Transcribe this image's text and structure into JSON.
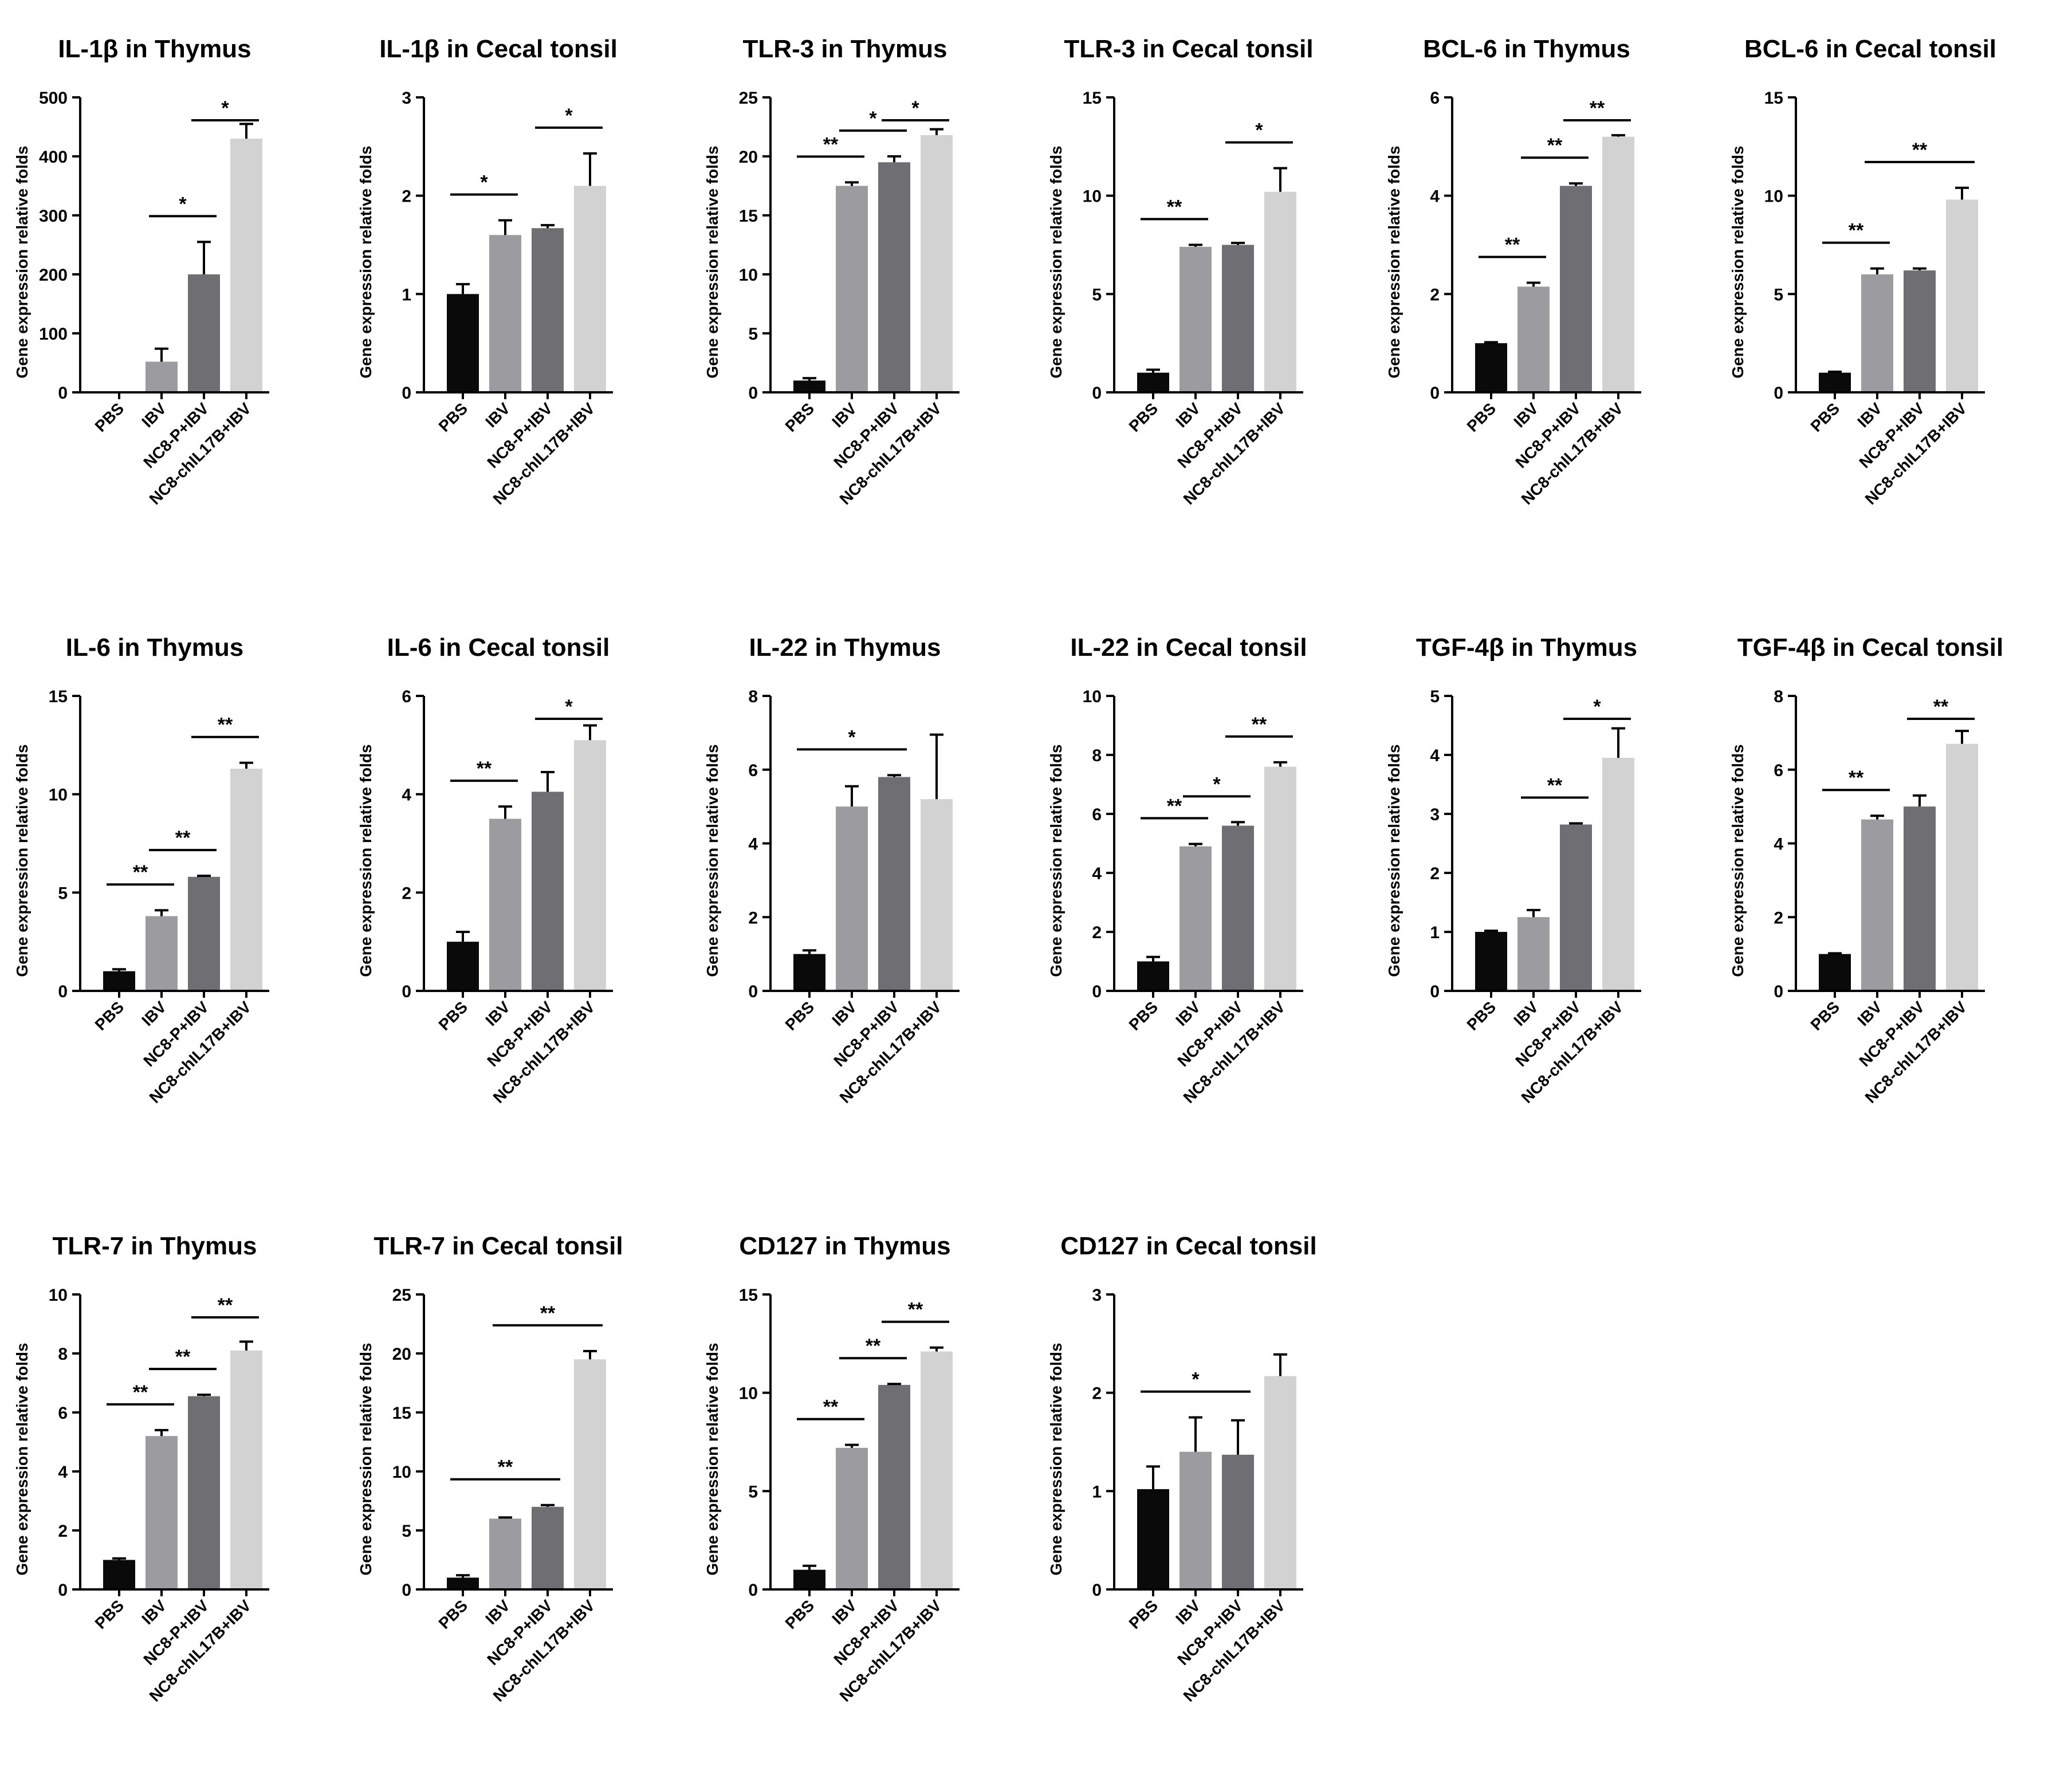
{
  "categories": [
    "PBS",
    "IBV",
    "NC8-P+IBV",
    "NC8-chIL17B+IBV"
  ],
  "ylabel": "Gene expression relative folds",
  "colors": {
    "bars": [
      "#0a0a0a",
      "#9b9ba0",
      "#6f6f73",
      "#d2d2d2"
    ],
    "axis": "#000000"
  },
  "chart_data": [
    {
      "type": "bar",
      "title": "IL-1β in Thymus",
      "ylim": [
        0,
        500
      ],
      "yticks": [
        "0",
        "100",
        "200",
        "300",
        "400",
        "500"
      ],
      "tickvals": [
        0,
        100,
        200,
        300,
        400,
        500
      ],
      "values": [
        1,
        52,
        200,
        430
      ],
      "errors": [
        0,
        22,
        55,
        25
      ],
      "sig": [
        {
          "from": 1,
          "to": 2,
          "label": "*"
        },
        {
          "from": 2,
          "to": 3,
          "label": "*"
        }
      ]
    },
    {
      "type": "bar",
      "title": "IL-1β in Cecal tonsil",
      "ylim": [
        0,
        3
      ],
      "yticks": [
        "0",
        "1",
        "2",
        "3"
      ],
      "tickvals": [
        0,
        1,
        2,
        3
      ],
      "values": [
        1.0,
        1.6,
        1.67,
        2.1
      ],
      "errors": [
        0.1,
        0.15,
        0.03,
        0.33
      ],
      "sig": [
        {
          "from": 0,
          "to": 1,
          "label": "*"
        },
        {
          "from": 2,
          "to": 3,
          "label": "*"
        }
      ]
    },
    {
      "type": "bar",
      "title": "TLR-3 in Thymus",
      "ylim": [
        0,
        25
      ],
      "yticks": [
        "0",
        "5",
        "10",
        "15",
        "20",
        "25"
      ],
      "tickvals": [
        0,
        5,
        10,
        15,
        20,
        25
      ],
      "values": [
        1.0,
        17.5,
        19.5,
        21.8
      ],
      "errors": [
        0.2,
        0.3,
        0.5,
        0.5
      ],
      "sig": [
        {
          "from": 0,
          "to": 1,
          "label": "**"
        },
        {
          "from": 1,
          "to": 2,
          "label": "*"
        },
        {
          "from": 2,
          "to": 3,
          "label": "*"
        }
      ]
    },
    {
      "type": "bar",
      "title": "TLR-3 in Cecal tonsil",
      "ylim": [
        0,
        15
      ],
      "yticks": [
        "0",
        "5",
        "10",
        "15"
      ],
      "tickvals": [
        0,
        5,
        10,
        15
      ],
      "values": [
        1.0,
        7.4,
        7.5,
        10.2
      ],
      "errors": [
        0.15,
        0.1,
        0.1,
        1.2
      ],
      "sig": [
        {
          "from": 0,
          "to": 1,
          "label": "**"
        },
        {
          "from": 2,
          "to": 3,
          "label": "*"
        }
      ]
    },
    {
      "type": "bar",
      "title": "BCL-6 in Thymus",
      "ylim": [
        0,
        6
      ],
      "yticks": [
        "0",
        "2",
        "4",
        "6"
      ],
      "tickvals": [
        0,
        2,
        4,
        6
      ],
      "values": [
        1.0,
        2.15,
        4.2,
        5.2
      ],
      "errors": [
        0.02,
        0.08,
        0.05,
        0.03
      ],
      "sig": [
        {
          "from": 0,
          "to": 1,
          "label": "**"
        },
        {
          "from": 1,
          "to": 2,
          "label": "**"
        },
        {
          "from": 2,
          "to": 3,
          "label": "**"
        }
      ]
    },
    {
      "type": "bar",
      "title": "BCL-6 in Cecal tonsil",
      "ylim": [
        0,
        15
      ],
      "yticks": [
        "0",
        "5",
        "10",
        "15"
      ],
      "tickvals": [
        0,
        5,
        10,
        15
      ],
      "values": [
        1.0,
        6.0,
        6.2,
        9.8
      ],
      "errors": [
        0.05,
        0.3,
        0.1,
        0.6
      ],
      "sig": [
        {
          "from": 0,
          "to": 1,
          "label": "**"
        },
        {
          "from": 1,
          "to": 3,
          "label": "**"
        }
      ]
    },
    {
      "type": "bar",
      "title": "IL-6 in Thymus",
      "ylim": [
        0,
        15
      ],
      "yticks": [
        "0",
        "5",
        "10",
        "15"
      ],
      "tickvals": [
        0,
        5,
        10,
        15
      ],
      "values": [
        1.0,
        3.8,
        5.8,
        11.3
      ],
      "errors": [
        0.1,
        0.3,
        0.05,
        0.3
      ],
      "sig": [
        {
          "from": 0,
          "to": 1,
          "label": "**"
        },
        {
          "from": 1,
          "to": 2,
          "label": "**"
        },
        {
          "from": 2,
          "to": 3,
          "label": "**"
        }
      ]
    },
    {
      "type": "bar",
      "title": "IL-6 in Cecal tonsil",
      "ylim": [
        0,
        6
      ],
      "yticks": [
        "0",
        "2",
        "4",
        "6"
      ],
      "tickvals": [
        0,
        2,
        4,
        6
      ],
      "values": [
        1.0,
        3.5,
        4.05,
        5.1
      ],
      "errors": [
        0.2,
        0.25,
        0.4,
        0.3
      ],
      "sig": [
        {
          "from": 0,
          "to": 1,
          "label": "**"
        },
        {
          "from": 2,
          "to": 3,
          "label": "*"
        }
      ]
    },
    {
      "type": "bar",
      "title": "IL-22 in Thymus",
      "ylim": [
        0,
        8
      ],
      "yticks": [
        "0",
        "2",
        "4",
        "6",
        "8"
      ],
      "tickvals": [
        0,
        2,
        4,
        6,
        8
      ],
      "values": [
        1.0,
        5.0,
        5.8,
        5.2
      ],
      "errors": [
        0.1,
        0.55,
        0.05,
        1.75
      ],
      "sig": [
        {
          "from": 0,
          "to": 2,
          "label": "*"
        }
      ]
    },
    {
      "type": "bar",
      "title": "IL-22 in Cecal tonsil",
      "ylim": [
        0,
        10
      ],
      "yticks": [
        "0",
        "2",
        "4",
        "6",
        "8",
        "10"
      ],
      "tickvals": [
        0,
        2,
        4,
        6,
        8,
        10
      ],
      "values": [
        1.0,
        4.9,
        5.6,
        7.6
      ],
      "errors": [
        0.15,
        0.08,
        0.12,
        0.15
      ],
      "sig": [
        {
          "from": 0,
          "to": 1,
          "label": "**"
        },
        {
          "from": 1,
          "to": 2,
          "label": "*"
        },
        {
          "from": 2,
          "to": 3,
          "label": "**"
        }
      ]
    },
    {
      "type": "bar",
      "title": "TGF-4β in Thymus",
      "ylim": [
        0,
        5
      ],
      "yticks": [
        "0",
        "1",
        "2",
        "3",
        "4",
        "5"
      ],
      "tickvals": [
        0,
        1,
        2,
        3,
        4,
        5
      ],
      "values": [
        1.0,
        1.25,
        2.82,
        3.95
      ],
      "errors": [
        0.02,
        0.12,
        0.02,
        0.5
      ],
      "sig": [
        {
          "from": 1,
          "to": 2,
          "label": "**"
        },
        {
          "from": 2,
          "to": 3,
          "label": "*"
        }
      ]
    },
    {
      "type": "bar",
      "title": "TGF-4β in Cecal tonsil",
      "ylim": [
        0,
        8
      ],
      "yticks": [
        "0",
        "2",
        "4",
        "6",
        "8"
      ],
      "tickvals": [
        0,
        2,
        4,
        6,
        8
      ],
      "values": [
        1.0,
        4.65,
        5.0,
        6.7
      ],
      "errors": [
        0.02,
        0.1,
        0.3,
        0.35
      ],
      "sig": [
        {
          "from": 0,
          "to": 1,
          "label": "**"
        },
        {
          "from": 2,
          "to": 3,
          "label": "**"
        }
      ]
    },
    {
      "type": "bar",
      "title": "TLR-7 in Thymus",
      "ylim": [
        0,
        10
      ],
      "yticks": [
        "0",
        "2",
        "4",
        "6",
        "8",
        "10"
      ],
      "tickvals": [
        0,
        2,
        4,
        6,
        8,
        10
      ],
      "values": [
        1.0,
        5.2,
        6.55,
        8.1
      ],
      "errors": [
        0.05,
        0.2,
        0.05,
        0.3
      ],
      "sig": [
        {
          "from": 0,
          "to": 1,
          "label": "**"
        },
        {
          "from": 1,
          "to": 2,
          "label": "**"
        },
        {
          "from": 2,
          "to": 3,
          "label": "**"
        }
      ]
    },
    {
      "type": "bar",
      "title": "TLR-7 in Cecal tonsil",
      "ylim": [
        0,
        25
      ],
      "yticks": [
        "0",
        "5",
        "10",
        "15",
        "20",
        "25"
      ],
      "tickvals": [
        0,
        5,
        10,
        15,
        20,
        25
      ],
      "values": [
        1.0,
        6.0,
        7.0,
        19.5
      ],
      "errors": [
        0.2,
        0.1,
        0.15,
        0.7
      ],
      "sig": [
        {
          "from": 0,
          "to": 2,
          "label": "**"
        },
        {
          "from": 1,
          "to": 3,
          "label": "**"
        }
      ]
    },
    {
      "type": "bar",
      "title": "CD127 in Thymus",
      "ylim": [
        0,
        15
      ],
      "yticks": [
        "0",
        "5",
        "10",
        "15"
      ],
      "tickvals": [
        0,
        5,
        10,
        15
      ],
      "values": [
        1.0,
        7.2,
        10.4,
        12.1
      ],
      "errors": [
        0.2,
        0.15,
        0.05,
        0.2
      ],
      "sig": [
        {
          "from": 0,
          "to": 1,
          "label": "**"
        },
        {
          "from": 1,
          "to": 2,
          "label": "**"
        },
        {
          "from": 2,
          "to": 3,
          "label": "**"
        }
      ]
    },
    {
      "type": "bar",
      "title": "CD127 in Cecal tonsil",
      "ylim": [
        0,
        3
      ],
      "yticks": [
        "0",
        "1",
        "2",
        "3"
      ],
      "tickvals": [
        0,
        1,
        2,
        3
      ],
      "values": [
        1.02,
        1.4,
        1.37,
        2.17
      ],
      "errors": [
        0.23,
        0.35,
        0.35,
        0.22
      ],
      "sig": [
        {
          "from": 0,
          "to": 2,
          "label": "*"
        }
      ]
    }
  ]
}
